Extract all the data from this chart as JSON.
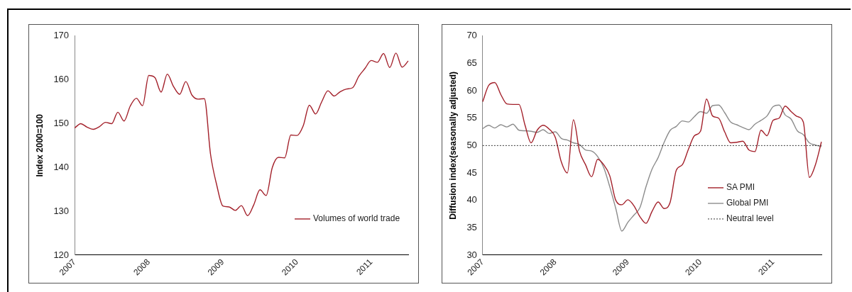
{
  "chart_data": [
    {
      "type": "line",
      "ylabel": "Index 2000=100",
      "categories": [
        "2007",
        null,
        null,
        null,
        null,
        null,
        null,
        null,
        null,
        null,
        null,
        null,
        "2008",
        null,
        null,
        null,
        null,
        null,
        null,
        null,
        null,
        null,
        null,
        null,
        "2009",
        null,
        null,
        null,
        null,
        null,
        null,
        null,
        null,
        null,
        null,
        null,
        "2010",
        null,
        null,
        null,
        null,
        null,
        null,
        null,
        null,
        null,
        null,
        null,
        "2011",
        null,
        null,
        null,
        null,
        null,
        null
      ],
      "series": [
        {
          "name": "Volumes of world trade",
          "color": "#a3202a",
          "values": [
            149.0,
            150.0,
            149.2,
            148.7,
            149.3,
            150.3,
            150.0,
            152.6,
            150.6,
            154.0,
            155.8,
            154.1,
            161.0,
            160.5,
            157.2,
            161.3,
            158.5,
            156.7,
            159.6,
            156.5,
            155.6,
            155.7,
            143,
            136,
            131.2,
            131.0,
            130.2,
            131.3,
            129.0,
            131.5,
            134.9,
            133.6,
            140.0,
            142.3,
            142.2,
            147.4,
            147.3,
            149.5,
            154.2,
            152.2,
            155.0,
            157.5,
            156.3,
            157.3,
            157.9,
            158.2,
            160.8,
            162.6,
            164.4,
            164.0,
            166.0,
            162.8,
            166.1,
            162.9,
            164.3
          ]
        }
      ],
      "ylim": [
        120,
        170
      ],
      "yticks": [
        120,
        130,
        140,
        150,
        160,
        170
      ],
      "grid": false,
      "legend": "bottom right",
      "marker": "none",
      "line_style": "solid"
    },
    {
      "type": "line",
      "ylabel": "Diffusion index(seasonally adjusted)",
      "categories": [
        "2007",
        null,
        null,
        null,
        null,
        null,
        null,
        null,
        null,
        null,
        null,
        null,
        "2008",
        null,
        null,
        null,
        null,
        null,
        null,
        null,
        null,
        null,
        null,
        null,
        "2009",
        null,
        null,
        null,
        null,
        null,
        null,
        null,
        null,
        null,
        null,
        null,
        "2010",
        null,
        null,
        null,
        null,
        null,
        null,
        null,
        null,
        null,
        null,
        null,
        "2011",
        null,
        null,
        null,
        null,
        null,
        null,
        null,
        null
      ],
      "series": [
        {
          "name": "SA PMI",
          "color": "#a3202a",
          "values": [
            58,
            61,
            61.5,
            59.3,
            57.6,
            57.5,
            57.5,
            53.7,
            50.5,
            52.8,
            53.7,
            53,
            51.5,
            47,
            45,
            54.7,
            49,
            46.5,
            44.3,
            47.5,
            46.5,
            44.5,
            40,
            39.2,
            40.1,
            39,
            37,
            35.8,
            38,
            39.7,
            38.5,
            39.7,
            45.5,
            46.5,
            49.3,
            51.8,
            52.6,
            58.5,
            55.4,
            55,
            52.5,
            50.5,
            50.6,
            50.8,
            49.2,
            48.9,
            52.8,
            51.8,
            54.6,
            55,
            57.2,
            56.2,
            55.3,
            54.3,
            44.2,
            46.5,
            50.7
          ]
        },
        {
          "name": "Global PMI",
          "color": "#8c8c8c",
          "values": [
            53.1,
            53.7,
            53.2,
            53.8,
            53.4,
            53.9,
            52.8,
            52.7,
            52.6,
            52.4,
            52.9,
            52.2,
            52.5,
            51.3,
            51,
            50.5,
            50.2,
            49.2,
            49,
            48,
            46,
            42.5,
            38.5,
            34.4,
            36,
            37.3,
            38.7,
            42.5,
            45.7,
            47.8,
            50.6,
            52.8,
            53.5,
            54.5,
            54.3,
            55.3,
            56.2,
            55.9,
            57.3,
            57.4,
            56,
            54.3,
            53.8,
            53.3,
            52.9,
            53.9,
            54.6,
            55.4,
            57.1,
            57.4,
            55.6,
            54.8,
            52.7,
            52,
            50.5,
            50.1,
            49.8
          ]
        }
      ],
      "ref_lines": [
        {
          "axis": "y",
          "value": 50,
          "label": "Neutral level",
          "color": "#000000",
          "line_style": "dotted"
        }
      ],
      "ylim": [
        30,
        70
      ],
      "yticks": [
        30,
        35,
        40,
        45,
        50,
        55,
        60,
        65,
        70
      ],
      "grid": false,
      "legend": "bottom right",
      "marker": "none",
      "line_style": "solid"
    }
  ]
}
